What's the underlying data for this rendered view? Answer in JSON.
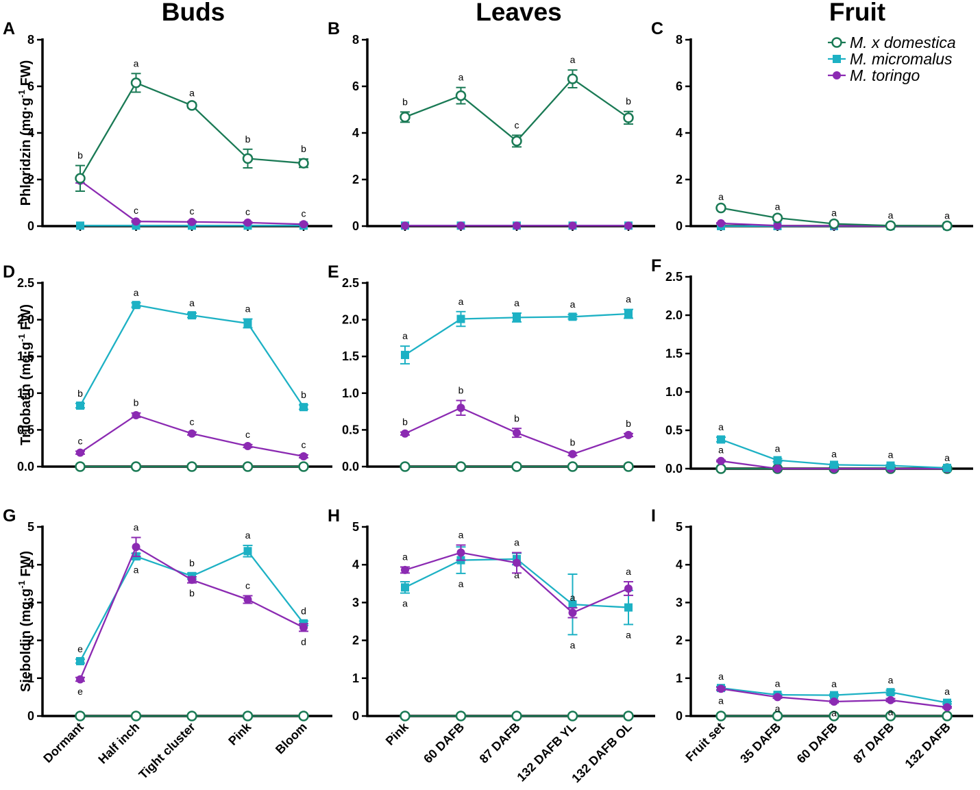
{
  "chart_data": {
    "type": "line",
    "column_titles": [
      "Buds",
      "Leaves",
      "Fruit"
    ],
    "legend": [
      {
        "key": "dom",
        "name": "M. x domestica",
        "marker": "open-circle",
        "color": "#1a7a55"
      },
      {
        "key": "mic",
        "name": "M. micromalus",
        "marker": "square",
        "color": "#1db1c4"
      },
      {
        "key": "tor",
        "name": "M. toringo",
        "marker": "circle",
        "color": "#8b2ab2"
      }
    ],
    "x_categories": {
      "buds": [
        "Dormant",
        "Half inch",
        "Tight cluster",
        "Pink",
        "Bloom"
      ],
      "leaves": [
        "Pink",
        "60 DAFB",
        "87 DAFB",
        "132 DAFB YL",
        "132 DAFB OL"
      ],
      "fruit": [
        "Fruit set",
        "35 DAFB",
        "60 DAFB",
        "87 DAFB",
        "132 DAFB"
      ]
    },
    "rows": [
      {
        "ylabel_main": "Phloridzin (mg·g",
        "ylabel_sup": "-1",
        "ylabel_end": " FW)",
        "ylim": [
          0,
          8
        ],
        "ticks": [
          "0",
          "2",
          "4",
          "6",
          "8"
        ]
      },
      {
        "ylabel_main": "Trilobatin (mg·g",
        "ylabel_sup": "-1",
        "ylabel_end": " FW)",
        "ylim": [
          0,
          2.5
        ],
        "ticks": [
          "0.0",
          "0.5",
          "1.0",
          "1.5",
          "2.0",
          "2.5"
        ]
      },
      {
        "ylabel_main": "Sieboldin (mg·g",
        "ylabel_sup": "-1",
        "ylabel_end": " FW)",
        "ylim": [
          0,
          5
        ],
        "ticks": [
          "0",
          "1",
          "2",
          "3",
          "4",
          "5"
        ]
      }
    ],
    "panels": [
      {
        "label": "A",
        "row": 0,
        "col": 0,
        "tissue": "buds",
        "series": [
          {
            "key": "mic",
            "values": [
              0.02,
              0.02,
              0.02,
              0.02,
              0.02
            ],
            "err": [
              0,
              0,
              0,
              0,
              0
            ],
            "sig": [
              null,
              null,
              null,
              null,
              null
            ]
          },
          {
            "key": "tor",
            "values": [
              1.95,
              0.2,
              0.18,
              0.15,
              0.08
            ],
            "err": [
              0.1,
              0.03,
              0.03,
              0.03,
              0.02
            ],
            "sig": [
              "",
              "c",
              "c",
              "c",
              "c"
            ]
          },
          {
            "key": "dom",
            "values": [
              2.05,
              6.15,
              5.18,
              2.9,
              2.7
            ],
            "err": [
              0.55,
              0.4,
              0.1,
              0.4,
              0.18
            ],
            "sig": [
              "b",
              "a",
              "a",
              "b",
              "b"
            ]
          }
        ]
      },
      {
        "label": "B",
        "row": 0,
        "col": 1,
        "tissue": "leaves",
        "series": [
          {
            "key": "mic",
            "values": [
              0.02,
              0.02,
              0.02,
              0.02,
              0.02
            ],
            "err": [
              0,
              0,
              0,
              0,
              0
            ],
            "sig": [
              null,
              null,
              null,
              null,
              null
            ]
          },
          {
            "key": "tor",
            "values": [
              0.02,
              0.02,
              0.02,
              0.02,
              0.02
            ],
            "err": [
              0,
              0,
              0,
              0,
              0
            ],
            "sig": [
              null,
              null,
              null,
              null,
              null
            ]
          },
          {
            "key": "dom",
            "values": [
              4.68,
              5.6,
              3.65,
              6.32,
              4.65
            ],
            "err": [
              0.22,
              0.35,
              0.25,
              0.38,
              0.27
            ],
            "sig": [
              "b",
              "a",
              "c",
              "a",
              "b"
            ]
          }
        ]
      },
      {
        "label": "C",
        "row": 0,
        "col": 2,
        "tissue": "fruit",
        "series": [
          {
            "key": "mic",
            "values": [
              0.0,
              0.0,
              0.0,
              0.0,
              0.0
            ],
            "err": [
              0,
              0,
              0,
              0,
              0
            ],
            "sig": [
              null,
              null,
              null,
              null,
              null
            ]
          },
          {
            "key": "tor",
            "values": [
              0.12,
              0.02,
              0.01,
              0.0,
              0.0
            ],
            "err": [
              0.02,
              0,
              0,
              0,
              0
            ],
            "sig": [
              null,
              null,
              null,
              null,
              null
            ]
          },
          {
            "key": "dom",
            "values": [
              0.78,
              0.35,
              0.1,
              0.02,
              0.01
            ],
            "err": [
              0.05,
              0.05,
              0.03,
              0.01,
              0
            ],
            "sig": [
              "a",
              "a",
              "a",
              "a",
              "a"
            ]
          }
        ]
      },
      {
        "label": "D",
        "row": 1,
        "col": 0,
        "tissue": "buds",
        "series": [
          {
            "key": "dom",
            "values": [
              0.0,
              0.0,
              0.0,
              0.0,
              0.0
            ],
            "err": [
              0,
              0,
              0,
              0,
              0
            ],
            "sig": [
              null,
              null,
              null,
              null,
              null
            ]
          },
          {
            "key": "tor",
            "values": [
              0.19,
              0.7,
              0.45,
              0.28,
              0.14
            ],
            "err": [
              0.02,
              0.03,
              0.02,
              0.02,
              0.02
            ],
            "sig": [
              "c",
              "b",
              "c",
              "c",
              "c"
            ]
          },
          {
            "key": "mic",
            "values": [
              0.83,
              2.2,
              2.06,
              1.95,
              0.81
            ],
            "err": [
              0.03,
              0.03,
              0.03,
              0.06,
              0.03
            ],
            "sig": [
              "b",
              "a",
              "a",
              "a",
              "b"
            ]
          }
        ]
      },
      {
        "label": "E",
        "row": 1,
        "col": 1,
        "tissue": "leaves",
        "series": [
          {
            "key": "dom",
            "values": [
              0.0,
              0.0,
              0.0,
              0.0,
              0.0
            ],
            "err": [
              0,
              0,
              0,
              0,
              0
            ],
            "sig": [
              null,
              null,
              null,
              null,
              null
            ]
          },
          {
            "key": "tor",
            "values": [
              0.45,
              0.8,
              0.46,
              0.17,
              0.43
            ],
            "err": [
              0.02,
              0.1,
              0.06,
              0.02,
              0.02
            ],
            "sig": [
              "b",
              "b",
              "b",
              "b",
              "b"
            ]
          },
          {
            "key": "mic",
            "values": [
              1.52,
              2.01,
              2.03,
              2.04,
              2.08
            ],
            "err": [
              0.12,
              0.1,
              0.06,
              0.03,
              0.06
            ],
            "sig": [
              "a",
              "a",
              "a",
              "a",
              "a"
            ]
          }
        ]
      },
      {
        "label": "F",
        "row": 1,
        "col": 2,
        "tissue": "fruit",
        "series": [
          {
            "key": "dom",
            "values": [
              0.0,
              0.0,
              0.0,
              0.0,
              0.0
            ],
            "err": [
              0,
              0,
              0,
              0,
              0
            ],
            "sig": [
              null,
              null,
              null,
              null,
              null
            ]
          },
          {
            "key": "tor",
            "values": [
              0.1,
              0.0,
              0.0,
              0.0,
              0.0
            ],
            "err": [
              0.01,
              0,
              0,
              0,
              0
            ],
            "sig": [
              "a",
              null,
              null,
              null,
              null
            ]
          },
          {
            "key": "mic",
            "values": [
              0.38,
              0.11,
              0.05,
              0.04,
              0.01
            ],
            "err": [
              0.03,
              0.02,
              0.01,
              0.01,
              0
            ],
            "sig": [
              "a",
              "a",
              "a",
              "a",
              "a"
            ]
          }
        ]
      },
      {
        "label": "G",
        "row": 2,
        "col": 0,
        "tissue": "buds",
        "series": [
          {
            "key": "dom",
            "values": [
              0.0,
              0.0,
              0.0,
              0.0,
              0.0
            ],
            "err": [
              0,
              0,
              0,
              0,
              0
            ],
            "sig": [
              null,
              null,
              null,
              null,
              null
            ]
          },
          {
            "key": "mic",
            "values": [
              1.45,
              4.22,
              3.7,
              4.36,
              2.45
            ],
            "err": [
              0.05,
              0.08,
              0.08,
              0.15,
              0.06
            ],
            "sig": [
              "e",
              "a",
              "b",
              "a",
              "d"
            ]
          },
          {
            "key": "tor",
            "values": [
              0.97,
              4.47,
              3.6,
              3.08,
              2.34
            ],
            "err": [
              0.05,
              0.25,
              0.08,
              0.1,
              0.1
            ],
            "sig": [
              "e",
              "a",
              "b",
              "c",
              "d"
            ]
          }
        ]
      },
      {
        "label": "H",
        "row": 2,
        "col": 1,
        "tissue": "leaves",
        "series": [
          {
            "key": "dom",
            "values": [
              0.0,
              0.0,
              0.0,
              0.0,
              0.0
            ],
            "err": [
              0,
              0,
              0,
              0,
              0
            ],
            "sig": [
              null,
              null,
              null,
              null,
              null
            ]
          },
          {
            "key": "mic",
            "values": [
              3.4,
              4.12,
              4.15,
              2.95,
              2.87
            ],
            "err": [
              0.15,
              0.35,
              0.15,
              0.8,
              0.45
            ],
            "sig": [
              "a",
              "a",
              "a",
              "a",
              "a"
            ]
          },
          {
            "key": "tor",
            "values": [
              3.86,
              4.32,
              4.05,
              2.73,
              3.37
            ],
            "err": [
              0.08,
              0.2,
              0.27,
              0.13,
              0.18
            ],
            "sig": [
              "a",
              "a",
              "a",
              "a",
              "a"
            ]
          }
        ]
      },
      {
        "label": "I",
        "row": 2,
        "col": 2,
        "tissue": "fruit",
        "series": [
          {
            "key": "dom",
            "values": [
              0.0,
              0.0,
              0.0,
              0.0,
              0.0
            ],
            "err": [
              0,
              0,
              0,
              0,
              0
            ],
            "sig": [
              null,
              null,
              null,
              null,
              null
            ]
          },
          {
            "key": "mic",
            "values": [
              0.74,
              0.56,
              0.55,
              0.63,
              0.35
            ],
            "err": [
              0.04,
              0.03,
              0.03,
              0.05,
              0.03
            ],
            "sig": [
              "a",
              "a",
              "a",
              "a",
              "a"
            ]
          },
          {
            "key": "tor",
            "values": [
              0.72,
              0.5,
              0.38,
              0.42,
              0.23
            ],
            "err": [
              0.04,
              0.03,
              0.03,
              0.04,
              0.02
            ],
            "sig": [
              "a",
              "a",
              "a",
              "a",
              ""
            ]
          }
        ]
      }
    ]
  }
}
